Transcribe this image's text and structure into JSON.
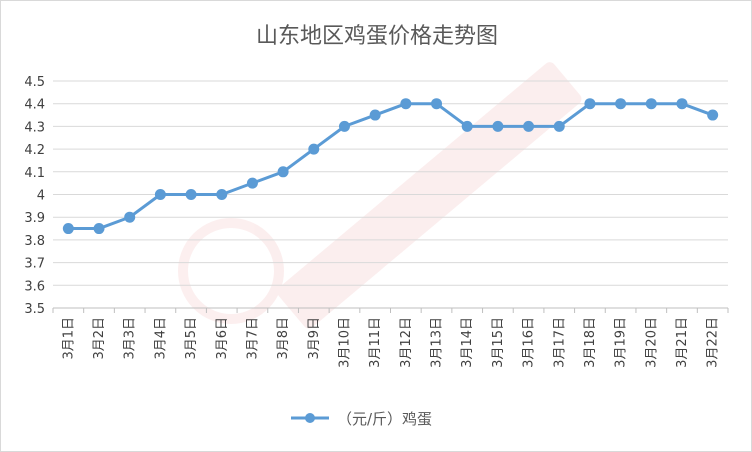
{
  "chart_data": {
    "type": "line",
    "title": "山东地区鸡蛋价格走势图",
    "categories": [
      "3月1日",
      "3月2日",
      "3月3日",
      "3月4日",
      "3月5日",
      "3月6日",
      "3月7日",
      "3月8日",
      "3月9日",
      "3月10日",
      "3月11日",
      "3月12日",
      "3月13日",
      "3月14日",
      "3月15日",
      "3月16日",
      "3月17日",
      "3月18日",
      "3月19日",
      "3月20日",
      "3月21日",
      "3月22日"
    ],
    "series": [
      {
        "name": "（元/斤）鸡蛋",
        "values": [
          3.85,
          3.85,
          3.9,
          4.0,
          4.0,
          4.0,
          4.05,
          4.1,
          4.2,
          4.3,
          4.35,
          4.4,
          4.4,
          4.3,
          4.3,
          4.3,
          4.3,
          4.4,
          4.4,
          4.4,
          4.4,
          4.35
        ],
        "color": "#5b9bd5"
      }
    ],
    "ylim": [
      3.5,
      4.5
    ],
    "yticks": [
      "3.5",
      "3.6",
      "3.7",
      "3.8",
      "3.9",
      "4",
      "4.1",
      "4.2",
      "4.3",
      "4.4",
      "4.5"
    ],
    "grid": true,
    "legend": "bottom"
  }
}
